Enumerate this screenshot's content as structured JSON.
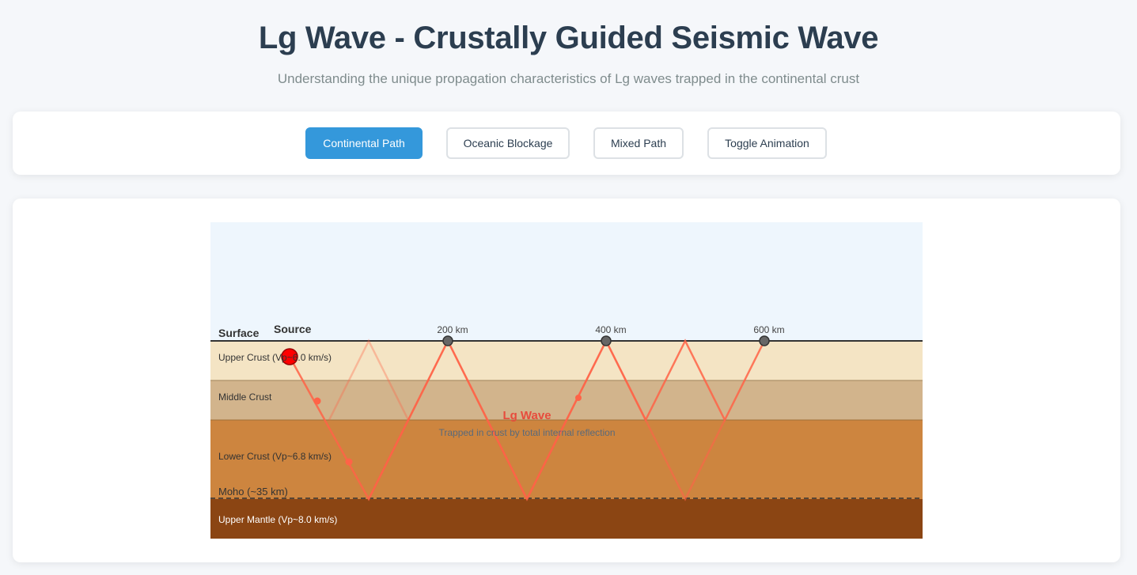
{
  "header": {
    "title": "Lg Wave - Crustally Guided Seismic Wave",
    "subtitle": "Understanding the unique propagation characteristics of Lg waves trapped in the continental crust"
  },
  "controls": {
    "continental_label": "Continental Path",
    "oceanic_label": "Oceanic Blockage",
    "mixed_label": "Mixed Path",
    "animation_label": "Toggle Animation",
    "active": "continental"
  },
  "diagram": {
    "surface_label": "Surface",
    "source_label": "Source",
    "layers": {
      "upper_crust": "Upper Crust (Vp~6.0 km/s)",
      "middle_crust": "Middle Crust",
      "lower_crust": "Lower Crust (Vp~6.8 km/s)",
      "moho": "Moho (~35 km)",
      "upper_mantle": "Upper Mantle (Vp~8.0 km/s)"
    },
    "stations": [
      "200 km",
      "400 km",
      "600 km"
    ],
    "wave_label": "Lg Wave",
    "wave_caption": "Trapped in crust by total internal reflection",
    "colors": {
      "sky": "#eef6fd",
      "upper_crust": "#f4e4c4",
      "middle_crust": "#d2b48c",
      "lower_crust": "#cd853f",
      "upper_mantle": "#8b4513",
      "ray": "#ff6347",
      "source": "#ff0000",
      "station": "#666666",
      "wave_label": "#e74c3c"
    }
  }
}
